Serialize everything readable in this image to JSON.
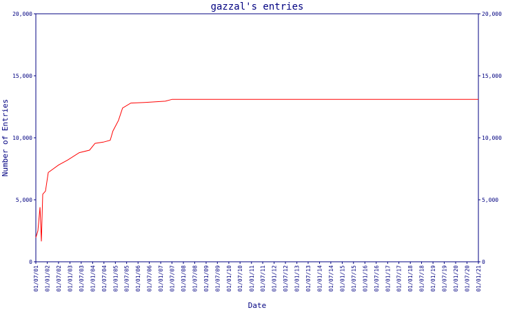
{
  "chart_data": {
    "type": "line",
    "title": "gazzal's entries",
    "x_label": "Date",
    "y_label": "Number of Entries",
    "color": "#ff0000",
    "axis_color": "#000080",
    "x": [
      "01/07/01",
      "03/08/01",
      "06/09/01",
      "28/09/01",
      "20/10/01",
      "03/12/01",
      "17/01/02",
      "01/07/02",
      "23/11/02",
      "31/05/03",
      "12/11/03",
      "09/02/04",
      "21/06/04",
      "10/10/04",
      "23/11/04",
      "20/02/05",
      "27/04/05",
      "07/09/05",
      "17/04/06",
      "16/03/07",
      "05/07/07",
      "01/01/21"
    ],
    "values": [
      1950,
      2500,
      4400,
      1650,
      5450,
      5700,
      7200,
      7800,
      8200,
      8800,
      9000,
      9550,
      9650,
      9800,
      10550,
      11400,
      12400,
      12800,
      12850,
      12950,
      13100,
      13100
    ],
    "xlim": [
      "01/07/01",
      "01/01/21"
    ],
    "xticks": [
      "01/07/01",
      "01/01/02",
      "01/07/02",
      "01/01/03",
      "01/07/03",
      "01/01/04",
      "01/07/04",
      "01/01/05",
      "01/07/05",
      "01/01/06",
      "01/07/06",
      "01/01/07",
      "01/07/07",
      "01/01/08",
      "01/07/08",
      "01/01/09",
      "01/07/09",
      "01/01/10",
      "01/07/10",
      "01/01/11",
      "01/07/11",
      "01/01/12",
      "01/07/12",
      "01/01/13",
      "01/07/13",
      "01/01/14",
      "01/07/14",
      "01/01/15",
      "01/07/15",
      "01/01/16",
      "01/07/16",
      "01/01/17",
      "01/07/17",
      "01/01/18",
      "01/07/18",
      "01/01/19",
      "01/07/19",
      "01/01/20",
      "01/07/20",
      "01/01/21"
    ],
    "ylim": [
      0,
      20000
    ],
    "yticks": [
      0,
      {
        "value": 5000,
        "label": "5,000"
      },
      {
        "value": 10000,
        "label": "10,000"
      },
      {
        "value": 15000,
        "label": "15,000"
      },
      {
        "value": 20000,
        "label": "20,000"
      }
    ],
    "y2lim": [
      0,
      20000
    ]
  }
}
